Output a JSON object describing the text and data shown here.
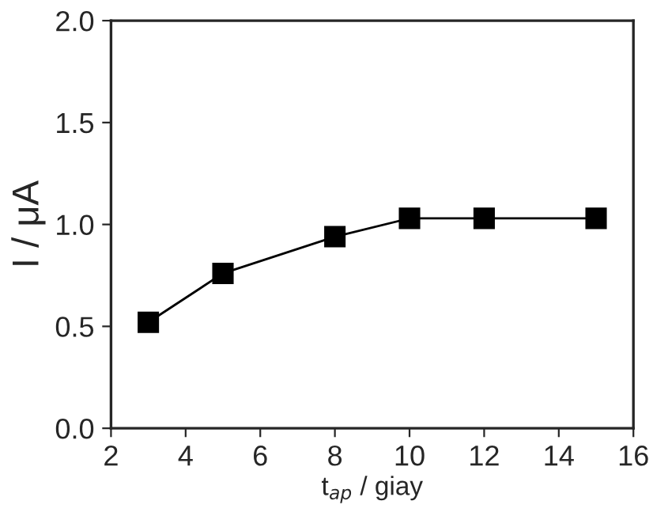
{
  "chart_data": {
    "type": "line",
    "xlabel": "t$_{ap}$ / giay",
    "ylabel": "I / μA",
    "x": [
      3,
      5,
      8,
      10,
      12,
      15
    ],
    "series": [
      {
        "color": "#000000",
        "values": [
          0.52,
          0.76,
          0.94,
          1.03,
          1.03,
          1.03
        ]
      }
    ],
    "marker": "square",
    "line_style": "solid",
    "xlim": [
      2,
      16
    ],
    "xticks": [
      2,
      4,
      6,
      8,
      10,
      12,
      14,
      16
    ],
    "ylim": [
      0,
      2.0
    ],
    "yticks": [
      {
        "value": 0,
        "label": "0.0"
      },
      {
        "value": 0.5,
        "label": "0.5"
      },
      {
        "value": 1.0,
        "label": "1.0"
      },
      {
        "value": 1.5,
        "label": "1.5"
      },
      {
        "value": 2.0,
        "label": "2.0"
      }
    ],
    "grid": false,
    "legend": false
  }
}
